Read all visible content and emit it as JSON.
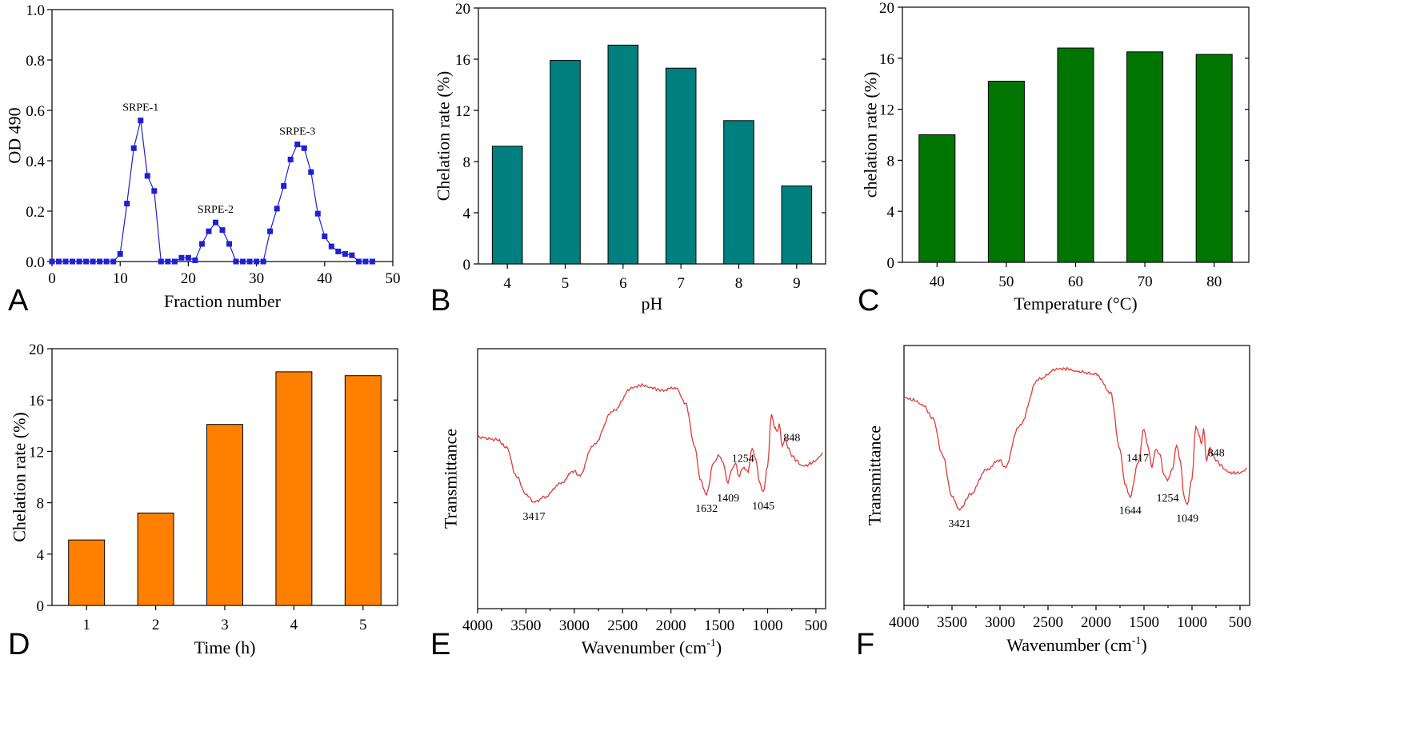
{
  "colors": {
    "points_blue": "#1f1fd6",
    "teal": "#007f7f",
    "green": "#007500",
    "orange": "#ff8000",
    "ir_red": "#e03a3a"
  },
  "chart_data": [
    {
      "panel": "A",
      "type": "line",
      "xlabel": "Fraction number",
      "ylabel": "OD 490",
      "xlim": [
        0,
        50
      ],
      "ylim": [
        0,
        1.0
      ],
      "xticks": [
        "0",
        "10",
        "20",
        "30",
        "40",
        "50"
      ],
      "yticks": [
        "0.0",
        "0.2",
        "0.4",
        "0.6",
        "0.8",
        "1.0"
      ],
      "marker": "square",
      "color": "#1f1fd6",
      "x": [
        0,
        1,
        2,
        3,
        4,
        5,
        6,
        7,
        8,
        9,
        10,
        11,
        12,
        13,
        14,
        15,
        16,
        17,
        18,
        19,
        20,
        21,
        22,
        23,
        24,
        25,
        26,
        27,
        28,
        29,
        30,
        31,
        32,
        33,
        34,
        35,
        36,
        37,
        38,
        39,
        40,
        41,
        42,
        43,
        44,
        45,
        46,
        47
      ],
      "y": [
        0,
        0,
        0,
        0,
        0,
        0,
        0,
        0,
        0,
        0,
        0.03,
        0.23,
        0.45,
        0.56,
        0.34,
        0.28,
        0,
        0,
        0,
        0.015,
        0.015,
        0.005,
        0.07,
        0.12,
        0.155,
        0.125,
        0.07,
        0,
        0,
        0,
        0,
        0,
        0.12,
        0.21,
        0.3,
        0.405,
        0.465,
        0.45,
        0.355,
        0.19,
        0.1,
        0.06,
        0.04,
        0.03,
        0.025,
        0,
        0,
        0
      ],
      "annotations": [
        {
          "text": "SRPE-1",
          "x": 13,
          "y": 0.56
        },
        {
          "text": "SRPE-2",
          "x": 24,
          "y": 0.155
        },
        {
          "text": "SRPE-3",
          "x": 36,
          "y": 0.465
        }
      ]
    },
    {
      "panel": "B",
      "type": "bar",
      "xlabel": "pH",
      "ylabel": "Chelation rate (%)",
      "ylim": [
        0,
        20
      ],
      "yticks": [
        "0",
        "4",
        "8",
        "12",
        "16",
        "20"
      ],
      "categories": [
        "4",
        "5",
        "6",
        "7",
        "8",
        "9"
      ],
      "values": [
        9.2,
        15.9,
        17.1,
        15.3,
        11.2,
        6.1
      ],
      "color": "#007f7f"
    },
    {
      "panel": "C",
      "type": "bar",
      "xlabel": "Temperature (°C)",
      "ylabel": "chelation rate (%)",
      "ylim": [
        0,
        20
      ],
      "yticks": [
        "0",
        "4",
        "8",
        "12",
        "16",
        "20"
      ],
      "categories": [
        "40",
        "50",
        "60",
        "70",
        "80"
      ],
      "values": [
        10.0,
        14.2,
        16.8,
        16.5,
        16.3
      ],
      "color": "#007500"
    },
    {
      "panel": "D",
      "type": "bar",
      "xlabel": "Time (h)",
      "ylabel": "Chelation rate (%)",
      "ylim": [
        0,
        20
      ],
      "yticks": [
        "0",
        "4",
        "8",
        "12",
        "16",
        "20"
      ],
      "categories": [
        "1",
        "2",
        "3",
        "4",
        "5"
      ],
      "values": [
        5.1,
        7.2,
        14.1,
        18.2,
        17.9
      ],
      "color": "#ff8000"
    },
    {
      "panel": "E",
      "type": "line",
      "xlabel": "Wavenumber (cm",
      "xlabel_sup": "-1",
      "xlabel_tail": ")",
      "ylabel": "Transmittance",
      "xlim": [
        4000,
        400
      ],
      "ylim": [
        0,
        100
      ],
      "xticks": [
        "4000",
        "3500",
        "3000",
        "2500",
        "2000",
        "1500",
        "1000",
        "500"
      ],
      "color": "#e03a3a",
      "x": [
        4000,
        3800,
        3700,
        3600,
        3500,
        3417,
        3300,
        3150,
        3000,
        2950,
        2800,
        2600,
        2400,
        2300,
        2200,
        2100,
        1950,
        1850,
        1750,
        1700,
        1632,
        1560,
        1500,
        1460,
        1409,
        1380,
        1330,
        1300,
        1254,
        1200,
        1160,
        1120,
        1080,
        1045,
        1000,
        960,
        930,
        900,
        880,
        848,
        820,
        790,
        750,
        700,
        650,
        600,
        550,
        500,
        450,
        430
      ],
      "y": [
        66,
        65,
        62,
        51,
        44,
        41,
        43,
        48,
        53,
        51,
        63,
        76,
        85,
        86,
        85,
        84,
        85,
        79,
        62,
        50,
        44,
        56,
        59,
        56,
        48,
        53,
        56,
        51,
        54,
        53,
        62,
        57,
        48,
        45,
        55,
        75,
        70,
        68,
        71,
        62,
        66,
        62,
        59,
        57,
        55,
        55,
        56,
        57,
        59,
        60
      ],
      "annotations": [
        {
          "text": "3417",
          "x": 3417,
          "y": 41
        },
        {
          "text": "1632",
          "x": 1632,
          "y": 44
        },
        {
          "text": "1409",
          "x": 1409,
          "y": 48
        },
        {
          "text": "1254",
          "x": 1254,
          "y": 54
        },
        {
          "text": "1045",
          "x": 1045,
          "y": 45
        },
        {
          "text": "848",
          "x": 848,
          "y": 62
        }
      ]
    },
    {
      "panel": "F",
      "type": "line",
      "xlabel": "Wavenumber (cm",
      "xlabel_sup": "-1",
      "xlabel_tail": ")",
      "ylabel": "Transmittance",
      "xlim": [
        4000,
        400
      ],
      "ylim": [
        0,
        100
      ],
      "xticks": [
        "4000",
        "3500",
        "3000",
        "2500",
        "2000",
        "1500",
        "1000",
        "500"
      ],
      "color": "#e03a3a",
      "x": [
        4000,
        3900,
        3800,
        3700,
        3600,
        3500,
        3421,
        3300,
        3150,
        3000,
        2950,
        2800,
        2600,
        2400,
        2300,
        2200,
        2000,
        1850,
        1750,
        1700,
        1644,
        1560,
        1500,
        1460,
        1417,
        1380,
        1330,
        1300,
        1254,
        1200,
        1160,
        1120,
        1080,
        1049,
        1000,
        960,
        930,
        900,
        880,
        848,
        820,
        790,
        750,
        700,
        650,
        600,
        550,
        500,
        450,
        430
      ],
      "y": [
        80,
        79,
        77,
        72,
        58,
        42,
        37,
        43,
        52,
        56,
        53,
        69,
        87,
        91,
        91,
        90,
        89,
        82,
        60,
        47,
        42,
        55,
        68,
        61,
        53,
        60,
        58,
        51,
        48,
        53,
        62,
        55,
        41,
        39,
        49,
        69,
        66,
        62,
        68,
        55,
        61,
        58,
        56,
        54,
        52,
        51,
        51,
        51,
        52,
        53
      ],
      "annotations": [
        {
          "text": "3421",
          "x": 3421,
          "y": 37
        },
        {
          "text": "1644",
          "x": 1644,
          "y": 42
        },
        {
          "text": "1417",
          "x": 1417,
          "y": 53
        },
        {
          "text": "1254",
          "x": 1254,
          "y": 48
        },
        {
          "text": "1049",
          "x": 1049,
          "y": 39
        },
        {
          "text": "848",
          "x": 848,
          "y": 55
        }
      ]
    }
  ]
}
